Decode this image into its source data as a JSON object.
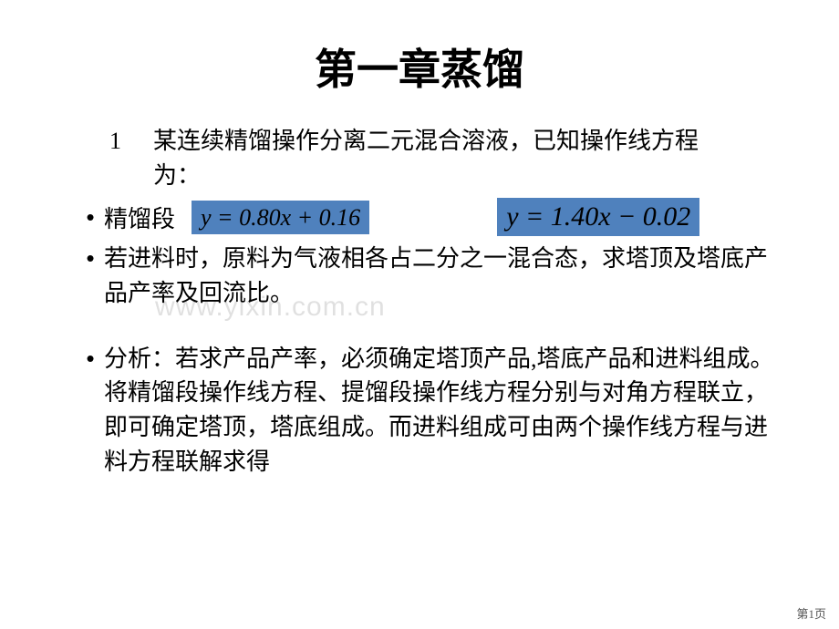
{
  "title": "第一章蒸馏",
  "item1": {
    "num": "1",
    "line1": "某连续精馏操作分离二元混合溶液，已知操作线方程",
    "line2": "为："
  },
  "eqRow": {
    "bullet": "•",
    "label": "精馏段",
    "eq1": "y = 0.80x + 0.16",
    "eq2": "y = 1.40x − 0.02",
    "highlight_color": "#4f81bd"
  },
  "bullet2": {
    "dot": "•",
    "text": "若进料时，原料为气液相各占二分之一混合态，求塔顶及塔底产品产率及回流比。"
  },
  "bullet3": {
    "dot": "•",
    "text": "分析：若求产品产率，必须确定塔顶产品,塔底产品和进料组成。将精馏段操作线方程、提馏段操作线方程分别与对角方程联立，即可确定塔顶，塔底组成。而进料组成可由两个操作线方程与进料方程联解求得"
  },
  "watermark": "www.yixin.com.cn",
  "pagenum": "第1页"
}
